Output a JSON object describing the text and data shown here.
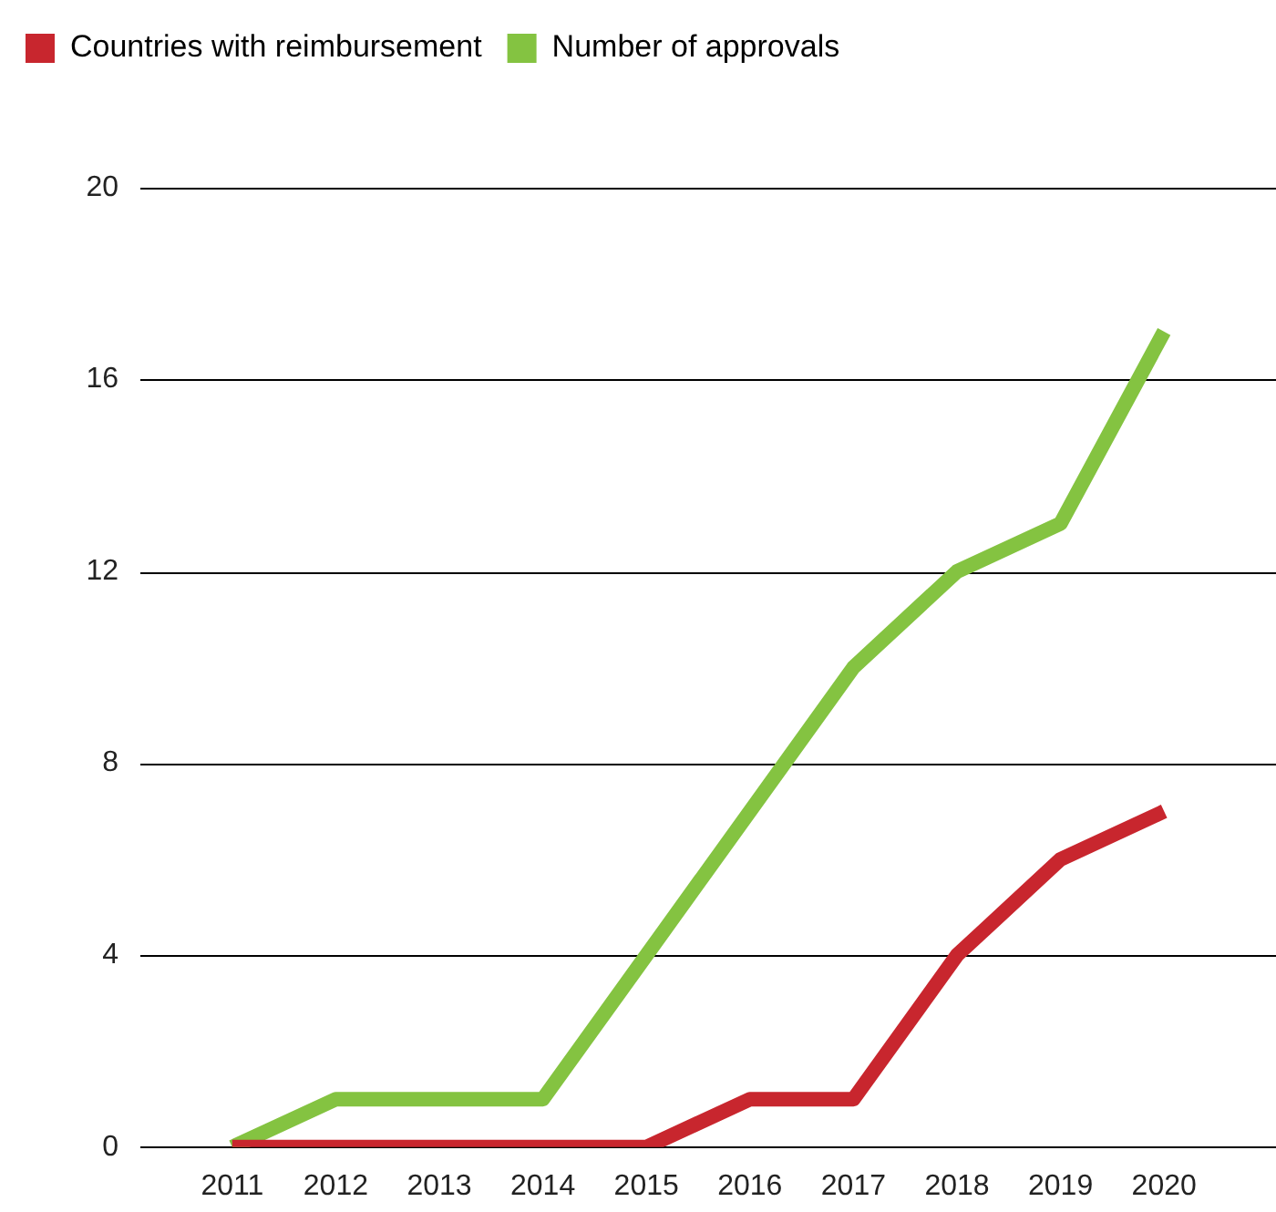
{
  "chart_data": {
    "type": "line",
    "categories": [
      "2011",
      "2012",
      "2013",
      "2014",
      "2015",
      "2016",
      "2017",
      "2018",
      "2019",
      "2020"
    ],
    "series": [
      {
        "name": "Countries with reimbursement",
        "color": "#c8262e",
        "values": [
          0,
          0,
          0,
          0,
          0,
          1,
          1,
          4,
          6,
          7
        ]
      },
      {
        "name": "Number of approvals",
        "color": "#84c341",
        "values": [
          0,
          1,
          1,
          1,
          4,
          7,
          10,
          12,
          13,
          17
        ]
      }
    ],
    "ylim": [
      0,
      20
    ],
    "yticks": [
      0,
      4,
      8,
      12,
      16,
      20
    ],
    "grid": "y",
    "legend": "top left",
    "marker": "none",
    "line_style": "solid"
  }
}
